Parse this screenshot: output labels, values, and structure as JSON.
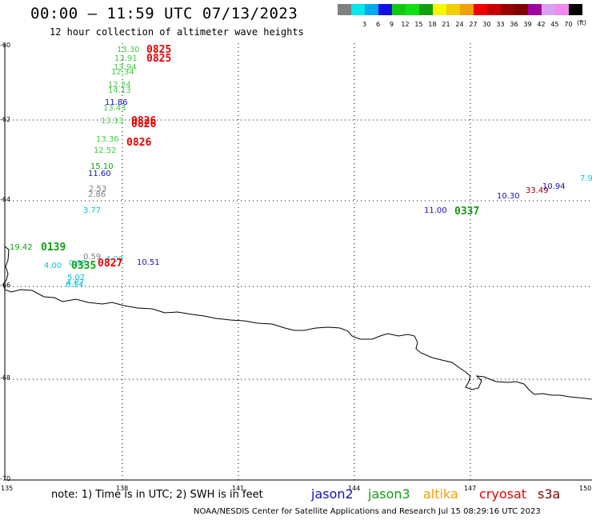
{
  "title": "00:00 – 11:59 UTC 07/13/2023",
  "subtitle": "12 hour collection of altimeter wave heights",
  "legend": {
    "unit": "(ft)",
    "swatches": [
      {
        "label": "",
        "color": "#808080"
      },
      {
        "label": "3",
        "color": "#00e8e8"
      },
      {
        "label": "6",
        "color": "#00a8f0"
      },
      {
        "label": "9",
        "color": "#1010e0"
      },
      {
        "label": "12",
        "color": "#10c810"
      },
      {
        "label": "15",
        "color": "#10e010"
      },
      {
        "label": "18",
        "color": "#10a010"
      },
      {
        "label": "21",
        "color": "#f8f800"
      },
      {
        "label": "24",
        "color": "#f0d000"
      },
      {
        "label": "27",
        "color": "#f0a000"
      },
      {
        "label": "30",
        "color": "#f00000"
      },
      {
        "label": "33",
        "color": "#c80000"
      },
      {
        "label": "36",
        "color": "#980000"
      },
      {
        "label": "39",
        "color": "#800000"
      },
      {
        "label": "42",
        "color": "#a000a0"
      },
      {
        "label": "45",
        "color": "#d8a0f0"
      },
      {
        "label": "70",
        "color": "#f088f0"
      },
      {
        "label": "",
        "color": "#000000"
      }
    ]
  },
  "lat_labels": [
    "-60",
    "-62",
    "-64",
    "-66",
    "-68",
    "-70"
  ],
  "lon_labels": [
    "135",
    "138",
    "141",
    "144",
    "147",
    "150"
  ],
  "observations": [
    {
      "text": "13.30",
      "color": "#44cc44",
      "kind": "v"
    },
    {
      "text": "0825",
      "color": "#ee0000",
      "kind": "t"
    },
    {
      "text": "13.91",
      "color": "#44cc44",
      "kind": "v"
    },
    {
      "text": "0825",
      "color": "#ee0000",
      "kind": "t"
    },
    {
      "text": "13.94",
      "color": "#44cc44",
      "kind": "v"
    },
    {
      "text": "12.34",
      "color": "#44cc44",
      "kind": "v"
    },
    {
      "text": "12.24",
      "color": "#44cc44",
      "kind": "v"
    },
    {
      "text": "14.13",
      "color": "#44cc44",
      "kind": "v"
    },
    {
      "text": "11.86",
      "color": "#1010cc",
      "kind": "v"
    },
    {
      "text": "13.43",
      "color": "#44cc44",
      "kind": "v"
    },
    {
      "text": "13.13",
      "color": "#44cc44",
      "kind": "v"
    },
    {
      "text": "0826",
      "color": "#ee0000",
      "kind": "t"
    },
    {
      "text": "0826",
      "color": "#ee0000",
      "kind": "t"
    },
    {
      "text": "13.36",
      "color": "#44cc44",
      "kind": "v"
    },
    {
      "text": "0826",
      "color": "#ee0000",
      "kind": "t"
    },
    {
      "text": "12.52",
      "color": "#44cc44",
      "kind": "v"
    },
    {
      "text": "15.10",
      "color": "#10a010",
      "kind": "v"
    },
    {
      "text": "11.60",
      "color": "#1010cc",
      "kind": "v"
    },
    {
      "text": "2.53",
      "color": "#808080",
      "kind": "v"
    },
    {
      "text": "2.86",
      "color": "#808080",
      "kind": "v"
    },
    {
      "text": "3.77",
      "color": "#00c8d8",
      "kind": "v"
    },
    {
      "text": "19.42",
      "color": "#10a010",
      "kind": "v"
    },
    {
      "text": "0139",
      "color": "#10a010",
      "kind": "t"
    },
    {
      "text": "0.59",
      "color": "#808080",
      "kind": "v"
    },
    {
      "text": "4.00",
      "color": "#00c8d8",
      "kind": "v"
    },
    {
      "text": "0.93",
      "color": "#00c8d8",
      "kind": "v"
    },
    {
      "text": "0335",
      "color": "#10a010",
      "kind": "t"
    },
    {
      "text": "4.00",
      "color": "#00c8d8",
      "kind": "v"
    },
    {
      "text": "0827",
      "color": "#ee0000",
      "kind": "t"
    },
    {
      "text": "10.51",
      "color": "#1010cc",
      "kind": "v"
    },
    {
      "text": "5.07",
      "color": "#00c8d8",
      "kind": "v"
    },
    {
      "text": "4.87",
      "color": "#00c8d8",
      "kind": "v"
    },
    {
      "text": "6.14",
      "color": "#00c8d8",
      "kind": "v"
    },
    {
      "text": "11.00",
      "color": "#1010cc",
      "kind": "v"
    },
    {
      "text": "0337",
      "color": "#10a010",
      "kind": "t"
    },
    {
      "text": "10.30",
      "color": "#1010cc",
      "kind": "v"
    },
    {
      "text": "33.49",
      "color": "#980000",
      "kind": "v"
    },
    {
      "text": "10.94",
      "color": "#1010cc",
      "kind": "v"
    },
    {
      "text": "7.9",
      "color": "#00c8d8",
      "kind": "v"
    }
  ],
  "note": "note: 1) Time is in UTC; 2) SWH is in feet",
  "satellites": [
    {
      "label": "jason2",
      "color": "#1010cc"
    },
    {
      "label": "jason3",
      "color": "#10a010"
    },
    {
      "label": "altika",
      "color": "#f0a000"
    },
    {
      "label": "cryosat",
      "color": "#ee0000"
    },
    {
      "label": "s3a",
      "color": "#800000"
    }
  ],
  "credit": "NOAA/NESDIS Center for Satellite Applications and Research     Jul 15 08:29:16 UTC 2023"
}
